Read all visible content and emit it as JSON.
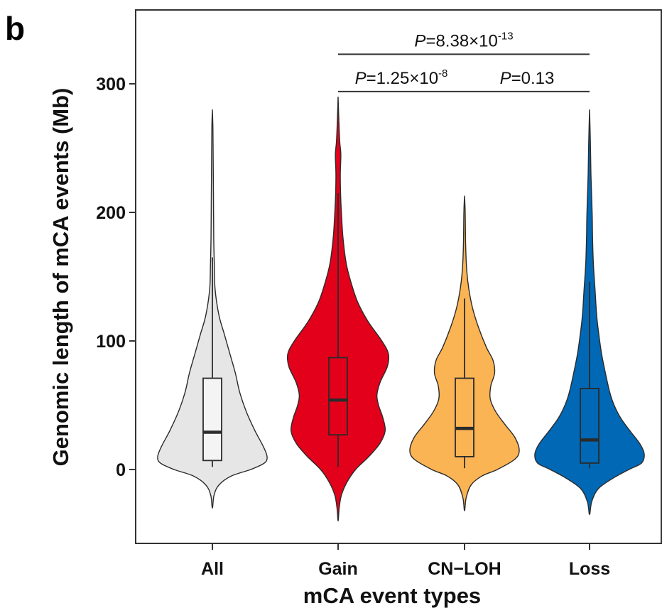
{
  "panel_label": "b",
  "chart_data": {
    "type": "violin",
    "xlabel": "mCA event types",
    "ylabel": "Genomic length of mCA events (Mb)",
    "ylim": [
      -55,
      350
    ],
    "yticks": [
      0,
      100,
      200,
      300
    ],
    "categories": [
      "All",
      "Gain",
      "CN−LOH",
      "Loss"
    ],
    "colors": {
      "All": "#e6e6e6",
      "Gain": "#e2001a",
      "CN−LOH": "#fbb454",
      "Loss": "#0068b4"
    },
    "box_colors": {
      "All": "#f4f4f4",
      "Gain": "#e2001a",
      "CN−LOH": "#fbb454",
      "Loss": "#0068b4"
    },
    "violins": [
      {
        "category": "All",
        "violin_min": -30,
        "violin_max": 280,
        "box": {
          "whisker_low": 2,
          "q1": 7,
          "median": 29,
          "q3": 71,
          "whisker_high": 165
        },
        "profile": [
          [
            -30,
            0
          ],
          [
            -20,
            0.03
          ],
          [
            -12,
            0.12
          ],
          [
            -5,
            0.35
          ],
          [
            0,
            0.7
          ],
          [
            5,
            0.95
          ],
          [
            10,
            1.0
          ],
          [
            18,
            0.93
          ],
          [
            30,
            0.78
          ],
          [
            45,
            0.62
          ],
          [
            60,
            0.5
          ],
          [
            75,
            0.42
          ],
          [
            90,
            0.32
          ],
          [
            105,
            0.22
          ],
          [
            120,
            0.12
          ],
          [
            140,
            0.05
          ],
          [
            160,
            0.035
          ],
          [
            180,
            0.025
          ],
          [
            210,
            0.02
          ],
          [
            240,
            0.015
          ],
          [
            265,
            0.01
          ],
          [
            280,
            0
          ]
        ]
      },
      {
        "category": "Gain",
        "violin_min": -40,
        "violin_max": 290,
        "box": {
          "whisker_low": 2,
          "q1": 27,
          "median": 54,
          "q3": 87,
          "whisker_high": 215
        },
        "profile": [
          [
            -40,
            0
          ],
          [
            -30,
            0.02
          ],
          [
            -20,
            0.06
          ],
          [
            -10,
            0.16
          ],
          [
            0,
            0.32
          ],
          [
            10,
            0.56
          ],
          [
            20,
            0.76
          ],
          [
            30,
            0.86
          ],
          [
            40,
            0.82
          ],
          [
            50,
            0.74
          ],
          [
            58,
            0.71
          ],
          [
            68,
            0.77
          ],
          [
            80,
            0.9
          ],
          [
            90,
            0.92
          ],
          [
            100,
            0.8
          ],
          [
            115,
            0.55
          ],
          [
            130,
            0.36
          ],
          [
            145,
            0.24
          ],
          [
            160,
            0.15
          ],
          [
            180,
            0.09
          ],
          [
            200,
            0.06
          ],
          [
            215,
            0.045
          ],
          [
            230,
            0.04
          ],
          [
            245,
            0.05
          ],
          [
            255,
            0.03
          ],
          [
            270,
            0.015
          ],
          [
            290,
            0
          ]
        ]
      },
      {
        "category": "CN−LOH",
        "violin_min": -32,
        "violin_max": 213,
        "box": {
          "whisker_low": 1,
          "q1": 10,
          "median": 32,
          "q3": 71,
          "whisker_high": 133
        },
        "profile": [
          [
            -32,
            0
          ],
          [
            -22,
            0.03
          ],
          [
            -12,
            0.12
          ],
          [
            -5,
            0.32
          ],
          [
            0,
            0.6
          ],
          [
            8,
            0.92
          ],
          [
            15,
            1.0
          ],
          [
            25,
            0.92
          ],
          [
            35,
            0.74
          ],
          [
            45,
            0.57
          ],
          [
            55,
            0.47
          ],
          [
            65,
            0.48
          ],
          [
            75,
            0.55
          ],
          [
            85,
            0.52
          ],
          [
            95,
            0.4
          ],
          [
            110,
            0.26
          ],
          [
            125,
            0.15
          ],
          [
            140,
            0.08
          ],
          [
            155,
            0.04
          ],
          [
            175,
            0.02
          ],
          [
            200,
            0.012
          ],
          [
            213,
            0
          ]
        ]
      },
      {
        "category": "Loss",
        "violin_min": -35,
        "violin_max": 280,
        "box": {
          "whisker_low": 1,
          "q1": 5,
          "median": 23,
          "q3": 63,
          "whisker_high": 146
        },
        "profile": [
          [
            -35,
            0
          ],
          [
            -25,
            0.04
          ],
          [
            -15,
            0.16
          ],
          [
            -7,
            0.42
          ],
          [
            0,
            0.72
          ],
          [
            5,
            0.95
          ],
          [
            12,
            1.0
          ],
          [
            20,
            0.92
          ],
          [
            30,
            0.74
          ],
          [
            40,
            0.57
          ],
          [
            50,
            0.45
          ],
          [
            60,
            0.37
          ],
          [
            75,
            0.29
          ],
          [
            90,
            0.22
          ],
          [
            105,
            0.17
          ],
          [
            120,
            0.13
          ],
          [
            140,
            0.1
          ],
          [
            160,
            0.07
          ],
          [
            180,
            0.055
          ],
          [
            195,
            0.05
          ],
          [
            210,
            0.04
          ],
          [
            230,
            0.025
          ],
          [
            255,
            0.015
          ],
          [
            280,
            0
          ]
        ]
      }
    ],
    "comparisons": [
      {
        "from": "Gain",
        "to": "Loss",
        "p_prefix": "P",
        "p_text": "=8.38×10",
        "p_exp": "-13",
        "y": 323
      },
      {
        "from": "Gain",
        "to": "CN−LOH",
        "p_prefix": "P",
        "p_text": "=1.25×10",
        "p_exp": "-8",
        "y": 294
      },
      {
        "from": "CN−LOH",
        "to": "Loss",
        "p_prefix": "P",
        "p_text": "=0.13",
        "p_exp": "",
        "y": 294
      }
    ]
  }
}
